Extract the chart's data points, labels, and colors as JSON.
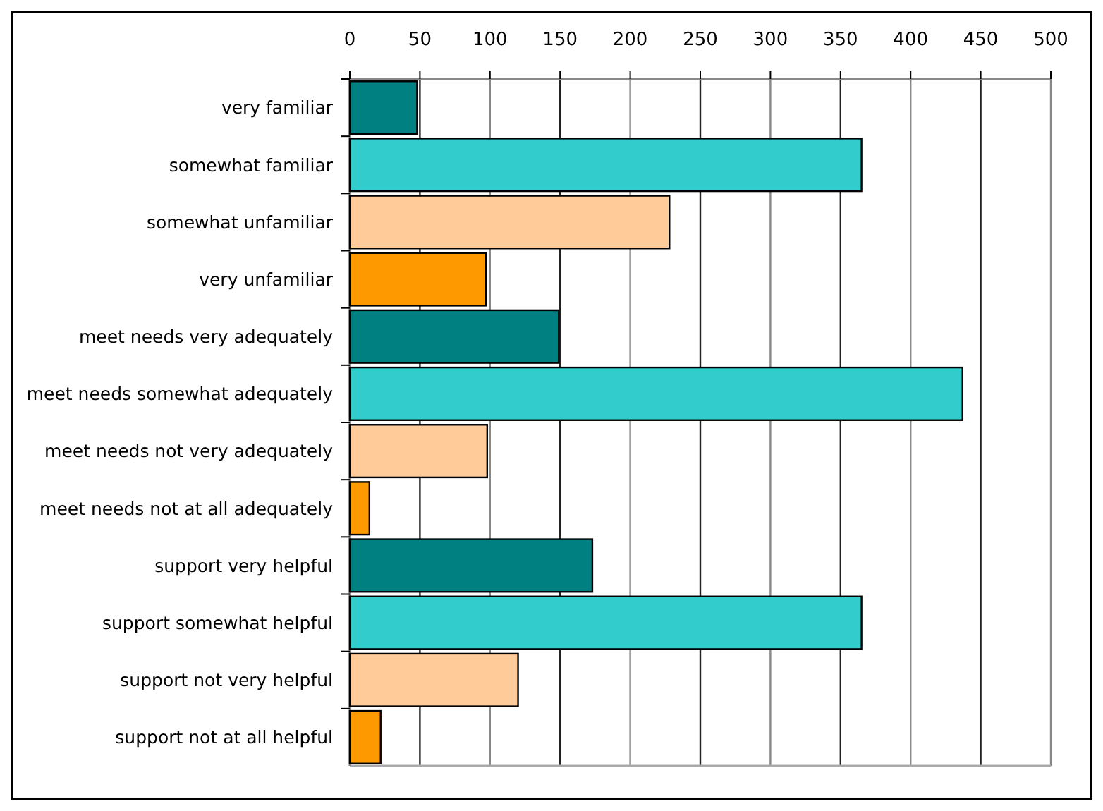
{
  "chart_data": {
    "type": "bar",
    "orientation": "horizontal",
    "categories": [
      "very familiar",
      "somewhat familiar",
      "somewhat unfamiliar",
      "very unfamiliar",
      "meet needs very adequately",
      "meet needs somewhat adequately",
      "meet needs not very adequately",
      "meet needs not at all adequately",
      "support very helpful",
      "support somewhat helpful",
      "support not very helpful",
      "support not at all helpful"
    ],
    "values": [
      48,
      365,
      228,
      97,
      149,
      437,
      98,
      14,
      173,
      365,
      120,
      22
    ],
    "colors": [
      "#008080",
      "#33cccc",
      "#ffcc99",
      "#ff9900",
      "#008080",
      "#33cccc",
      "#ffcc99",
      "#ff9900",
      "#008080",
      "#33cccc",
      "#ffcc99",
      "#ff9900"
    ],
    "xlim": [
      0,
      500
    ],
    "xticks": [
      0,
      50,
      100,
      150,
      200,
      250,
      300,
      350,
      400,
      450,
      500
    ],
    "grid": "x"
  }
}
